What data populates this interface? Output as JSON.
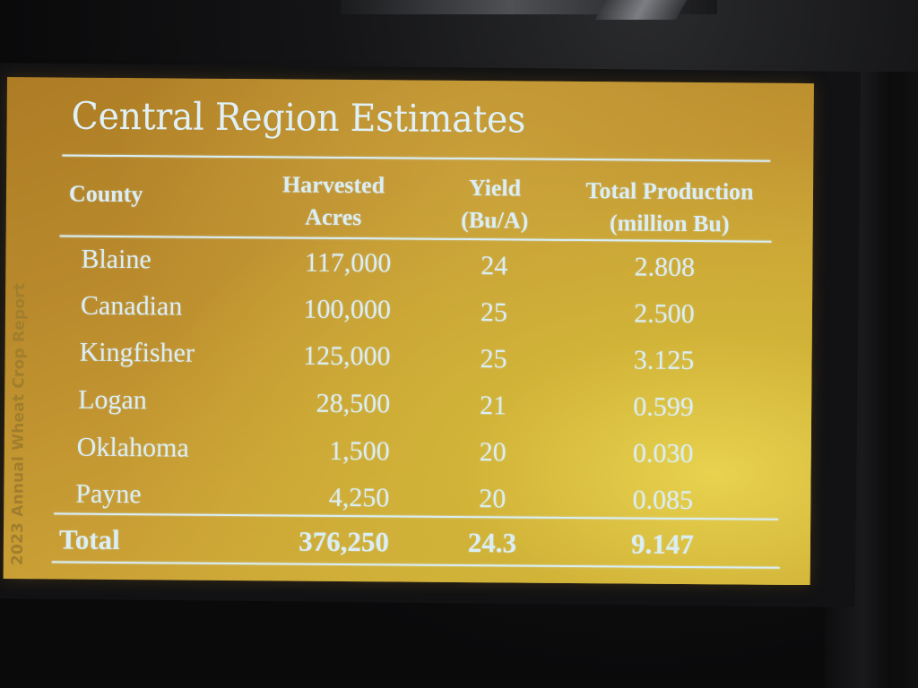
{
  "side_label": "2023 Annual Wheat Crop Report",
  "title": "Central Region Estimates",
  "columns": {
    "county": "County",
    "acres_line1": "Harvested",
    "acres_line2": "Acres",
    "yield_line1": "Yield",
    "yield_line2": "(Bu/A)",
    "production_line1": "Total Production",
    "production_line2": "(million Bu)"
  },
  "rows": [
    {
      "county": "Blaine",
      "acres": "117,000",
      "yield": "24",
      "production": "2.808"
    },
    {
      "county": "Canadian",
      "acres": "100,000",
      "yield": "25",
      "production": "2.500"
    },
    {
      "county": "Kingfisher",
      "acres": "125,000",
      "yield": "25",
      "production": "3.125"
    },
    {
      "county": "Logan",
      "acres": "28,500",
      "yield": "21",
      "production": "0.599"
    },
    {
      "county": "Oklahoma",
      "acres": "1,500",
      "yield": "20",
      "production": "0.030"
    },
    {
      "county": "Payne",
      "acres": "4,250",
      "yield": "20",
      "production": "0.085"
    }
  ],
  "total": {
    "label": "Total",
    "acres": "376,250",
    "yield": "24.3",
    "production": "9.147"
  },
  "colors": {
    "slide_background": "#c49a33",
    "text": "#dbeef5",
    "side_label": "#a17e2c"
  }
}
